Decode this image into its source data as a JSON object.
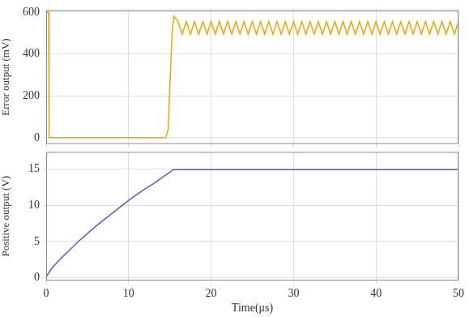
{
  "chart_data": [
    {
      "type": "line",
      "y_label": "Error output (mV)",
      "color": "#f7a200",
      "x": [
        0,
        0.3,
        0.35,
        2,
        4,
        6,
        8,
        10,
        12,
        14,
        14.5,
        14.8,
        15,
        15.3,
        15.5,
        16,
        16.5,
        17,
        17.5,
        18,
        18.5,
        19,
        19.5,
        20,
        20.5,
        21,
        21.5,
        22,
        22.5,
        23,
        23.5,
        24,
        24.5,
        25,
        25.5,
        26,
        26.5,
        27,
        27.5,
        28,
        28.5,
        29,
        29.5,
        30,
        30.5,
        31,
        31.5,
        32,
        32.5,
        33,
        33.5,
        34,
        34.5,
        35,
        35.5,
        36,
        36.5,
        37,
        37.5,
        38,
        38.5,
        39,
        39.5,
        40,
        40.5,
        41,
        41.5,
        42,
        42.5,
        43,
        43.5,
        44,
        44.5,
        45,
        45.5,
        46,
        46.5,
        47,
        47.5,
        48,
        48.5,
        49,
        49.5,
        50
      ],
      "values": [
        600,
        600,
        0,
        0,
        0,
        0,
        0,
        0,
        0,
        0,
        0,
        40,
        250,
        520,
        580,
        555,
        495,
        555,
        495,
        555,
        495,
        555,
        495,
        555,
        495,
        555,
        495,
        555,
        495,
        555,
        495,
        555,
        495,
        555,
        495,
        555,
        495,
        555,
        495,
        555,
        495,
        555,
        495,
        555,
        495,
        555,
        495,
        555,
        495,
        555,
        495,
        555,
        495,
        555,
        495,
        555,
        495,
        555,
        495,
        555,
        495,
        555,
        495,
        555,
        495,
        555,
        495,
        555,
        495,
        555,
        495,
        555,
        495,
        555,
        495,
        555,
        495,
        555,
        495,
        555,
        495,
        555,
        495,
        555
      ],
      "xlim": [
        0,
        50
      ],
      "xticks": [
        0,
        10,
        20,
        30,
        40,
        50
      ],
      "ylim": [
        -30,
        610
      ],
      "yticks": [
        0,
        200,
        400,
        600
      ],
      "grid": true,
      "tick_labels": "y"
    },
    {
      "type": "line",
      "x_label": "Time(μs)",
      "y_label": "Positive output (V)",
      "color": "#5b5bc8",
      "x": [
        0,
        0.5,
        1,
        2,
        3,
        4,
        5,
        6,
        7,
        8,
        9,
        10,
        11,
        12,
        13,
        14,
        15,
        15.4,
        16,
        20,
        30,
        40,
        50
      ],
      "values": [
        0.1,
        1.0,
        1.7,
        2.9,
        4.0,
        5.1,
        6.1,
        7.1,
        8.0,
        8.9,
        9.8,
        10.7,
        11.5,
        12.3,
        13.0,
        13.8,
        14.6,
        14.95,
        14.95,
        14.95,
        14.95,
        14.95,
        14.95
      ],
      "xlim": [
        0,
        50
      ],
      "xticks": [
        0,
        10,
        20,
        30,
        40,
        50
      ],
      "ylim": [
        -0.4,
        17.4
      ],
      "yticks": [
        0,
        5,
        10,
        15
      ],
      "grid": true
    }
  ]
}
